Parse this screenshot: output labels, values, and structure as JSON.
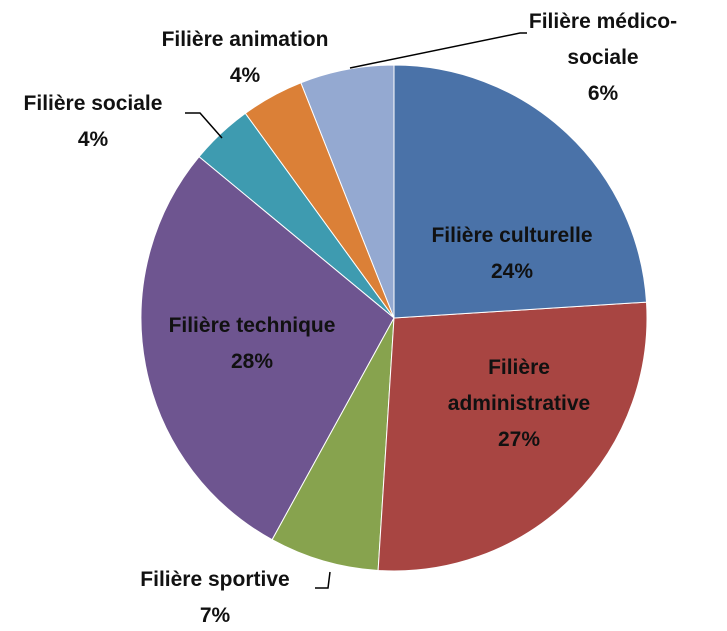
{
  "chart_data": {
    "type": "pie",
    "categories": [
      "Filière culturelle",
      "Filière administrative",
      "Filière sportive",
      "Filière technique",
      "Filière sociale",
      "Filière animation",
      "Filière médico-sociale"
    ],
    "values": [
      24,
      27,
      7,
      28,
      4,
      4,
      6
    ],
    "value_labels": [
      "24%",
      "27%",
      "7%",
      "28%",
      "4%",
      "4%",
      "6%"
    ],
    "colors": [
      "#4a72a8",
      "#a84542",
      "#87a34e",
      "#6e5590",
      "#3e9bb0",
      "#db8037",
      "#94a9d1"
    ]
  }
}
